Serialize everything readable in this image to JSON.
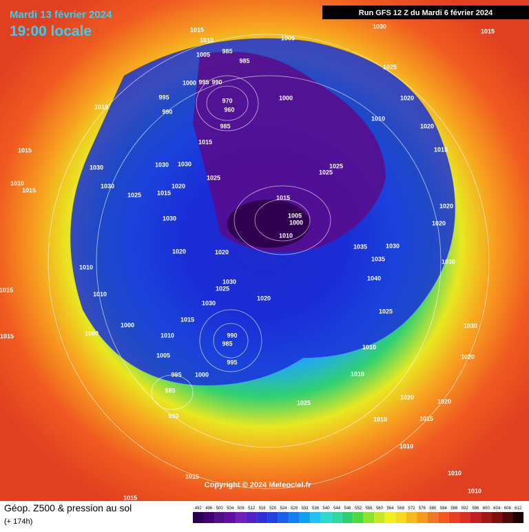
{
  "header": {
    "date": "Mardi 13 février 2024",
    "time": "19:00 locale",
    "run": "Run GFS 12 Z du Mardi 6 février 2024"
  },
  "copyright": "Copyright © 2024 Meteociel.fr",
  "footer": {
    "title": "Géop. Z500 & pression au sol",
    "lead": "(+ 174h)"
  },
  "legend": {
    "ticks": [
      492,
      496,
      500,
      504,
      508,
      512,
      516,
      520,
      524,
      528,
      532,
      536,
      540,
      544,
      548,
      552,
      556,
      560,
      564,
      568,
      572,
      576,
      580,
      584,
      588,
      592,
      596,
      600,
      604,
      608,
      612
    ]
  },
  "isobar_labels": [
    1015,
    1010,
    1005,
    985,
    985,
    1005,
    1030,
    1015,
    1025,
    995,
    1000,
    995,
    990,
    970,
    960,
    990,
    1000,
    1015,
    1020,
    1010,
    1020,
    985,
    1015,
    1015,
    1015,
    1030,
    1030,
    1030,
    1025,
    1025,
    1025,
    1010,
    1015,
    1030,
    1020,
    1025,
    1015,
    1015,
    1020,
    1030,
    1005,
    1000,
    1010,
    1020,
    1035,
    1030,
    1020,
    1020,
    1035,
    1010,
    1030,
    1040,
    1030,
    1025,
    1020,
    1010,
    1015,
    1030,
    1025,
    1015,
    1000,
    1010,
    1030,
    990,
    985,
    1010,
    1005,
    995,
    1020,
    995,
    1000,
    1010,
    985,
    1020,
    1020,
    1025,
    1010,
    1015,
    990,
    1010,
    1010,
    1015,
    1010,
    1015,
    1015,
    1000
  ]
}
